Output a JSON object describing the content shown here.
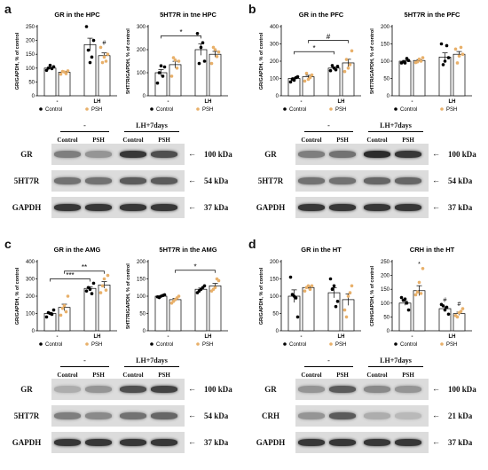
{
  "panels": [
    {
      "letter": "a"
    },
    {
      "letter": "b"
    },
    {
      "letter": "c"
    },
    {
      "letter": "d"
    }
  ],
  "legend": {
    "control": "Control",
    "psh": "PSH"
  },
  "colors": {
    "control": "#000000",
    "psh": "#e8b06a",
    "bar": "#ffffff"
  },
  "chart_data": [
    {
      "type": "bar",
      "title": "GR in the HPC",
      "ylabel": "GR/GAPDH, % of control",
      "categories": [
        "-",
        "LH"
      ],
      "ylim": [
        0,
        250
      ],
      "yticks": [
        0,
        50,
        100,
        150,
        200,
        250
      ],
      "series": [
        {
          "name": "Control",
          "values": [
            100,
            185
          ],
          "points": [
            [
              92,
              105,
              100,
              98,
              110
            ],
            [
              250,
              200,
              165,
              140,
              120
            ]
          ]
        },
        {
          "name": "PSH",
          "values": [
            85,
            145
          ],
          "points": [
            [
              78,
              90,
              88,
              80,
              86
            ],
            [
              175,
              150,
              120,
              125,
              140
            ]
          ]
        }
      ],
      "annotations": [
        {
          "text": "#",
          "x": "LH",
          "series": "PSH"
        }
      ],
      "brackets": []
    },
    {
      "type": "bar",
      "title": "5HT7R in tne HPC",
      "ylabel": "5HT7R/GAPDH, % of control",
      "categories": [
        "-",
        "LH"
      ],
      "ylim": [
        0,
        300
      ],
      "yticks": [
        0,
        100,
        200,
        300
      ],
      "series": [
        {
          "name": "Control",
          "values": [
            100,
            200
          ],
          "points": [
            [
              55,
              125,
              100,
              85,
              130
            ],
            [
              270,
              150,
              140,
              230,
              210
            ]
          ]
        },
        {
          "name": "PSH",
          "values": [
            135,
            180
          ],
          "points": [
            [
              85,
              150,
              165,
              120,
              155
            ],
            [
              140,
              190,
              210,
              170,
              200
            ]
          ]
        }
      ],
      "annotations": [],
      "brackets": [
        {
          "text": "*",
          "from": "-/Control",
          "to": "LH/Control",
          "y": 260
        }
      ]
    },
    {
      "type": "bar",
      "title": "GR in the PFC",
      "ylabel": "GR/GAPDH, % of control",
      "categories": [
        "-",
        "LH"
      ],
      "ylim": [
        0,
        400
      ],
      "yticks": [
        0,
        100,
        200,
        300,
        400
      ],
      "series": [
        {
          "name": "Control",
          "values": [
            100,
            160
          ],
          "points": [
            [
              80,
              110,
              95,
              105,
              90
            ],
            [
              145,
              170,
              175,
              150,
              160
            ]
          ]
        },
        {
          "name": "PSH",
          "values": [
            110,
            190
          ],
          "points": [
            [
              85,
              120,
              130,
              105,
              95
            ],
            [
              140,
              260,
              210,
              180,
              160
            ]
          ]
        }
      ],
      "annotations": [],
      "brackets": [
        {
          "text": "*",
          "from": "-/Control",
          "to": "LH/Control",
          "y": 255
        },
        {
          "text": "#",
          "from": "-/PSH",
          "to": "LH/PSH",
          "y": 320
        }
      ]
    },
    {
      "type": "bar",
      "title": "5HT7R in the PFC",
      "ylabel": "5HT7R/GAPDH, % of control",
      "categories": [
        "-",
        "LH"
      ],
      "ylim": [
        0,
        200
      ],
      "yticks": [
        0,
        50,
        100,
        150,
        200
      ],
      "series": [
        {
          "name": "Control",
          "values": [
            100,
            112
          ],
          "points": [
            [
              95,
              102,
              98,
              108,
              95
            ],
            [
              150,
              110,
              90,
              145,
              100
            ]
          ]
        },
        {
          "name": "PSH",
          "values": [
            102,
            120
          ],
          "points": [
            [
              96,
              110,
              98,
              100,
              106
            ],
            [
              135,
              120,
              95,
              140,
              115
            ]
          ]
        }
      ],
      "annotations": [],
      "brackets": []
    },
    {
      "type": "bar",
      "title": "GR in the AMG",
      "ylabel": "GR/GAPDH, % of control",
      "categories": [
        "-",
        "LH"
      ],
      "ylim": [
        0,
        400
      ],
      "yticks": [
        0,
        100,
        200,
        300,
        400
      ],
      "series": [
        {
          "name": "Control",
          "values": [
            100,
            245
          ],
          "points": [
            [
              80,
              120,
              105,
              95,
              100
            ],
            [
              230,
              275,
              250,
              215,
              240
            ]
          ]
        },
        {
          "name": "PSH",
          "values": [
            135,
            265
          ],
          "points": [
            [
              90,
              200,
              130,
              110,
              145
            ],
            [
              220,
              320,
              260,
              235,
              300
            ]
          ]
        }
      ],
      "annotations": [],
      "brackets": [
        {
          "text": "***",
          "from": "-/Control",
          "to": "LH/Control",
          "y": 300
        },
        {
          "text": "**",
          "from": "-/PSH",
          "to": "LH/PSH",
          "y": 345
        }
      ]
    },
    {
      "type": "bar",
      "title": "5HT7R in the AMG",
      "ylabel": "5HT7R/GAPDH, % of control",
      "categories": [
        "-",
        "LH"
      ],
      "ylim": [
        0,
        200
      ],
      "yticks": [
        0,
        50,
        100,
        150,
        200
      ],
      "series": [
        {
          "name": "Control",
          "values": [
            100,
            120
          ],
          "points": [
            [
              98,
              104,
              96,
              102,
              100
            ],
            [
              110,
              130,
              115,
              125,
              120
            ]
          ]
        },
        {
          "name": "PSH",
          "values": [
            90,
            130
          ],
          "points": [
            [
              80,
              100,
              85,
              95,
              90
            ],
            [
              115,
              145,
              120,
              150,
              125
            ]
          ]
        }
      ],
      "annotations": [],
      "brackets": [
        {
          "text": "*",
          "from": "-/PSH",
          "to": "LH/PSH",
          "y": 175
        }
      ]
    },
    {
      "type": "bar",
      "title": "GR in the HT",
      "ylabel": "GR/GAPDH, % of control",
      "categories": [
        "-",
        "LH"
      ],
      "ylim": [
        0,
        200
      ],
      "yticks": [
        0,
        50,
        100,
        150,
        200
      ],
      "series": [
        {
          "name": "Control",
          "values": [
            100,
            110
          ],
          "points": [
            [
              155,
              40,
              105,
              95,
              100
            ],
            [
              150,
              85,
              120,
              70,
              130
            ]
          ]
        },
        {
          "name": "PSH",
          "values": [
            125,
            90
          ],
          "points": [
            [
              115,
              130,
              125,
              120,
              130
            ],
            [
              60,
              130,
              40,
              110,
              100
            ]
          ]
        }
      ],
      "annotations": [],
      "brackets": []
    },
    {
      "type": "bar",
      "title": "CRH in the HT",
      "ylabel": "CRH/GAPDH, % of control",
      "categories": [
        "-",
        "LH"
      ],
      "ylim": [
        0,
        250
      ],
      "yticks": [
        0,
        50,
        100,
        150,
        200,
        250
      ],
      "series": [
        {
          "name": "Control",
          "values": [
            100,
            80
          ],
          "points": [
            [
              120,
              75,
              110,
              100,
              115
            ],
            [
              95,
              60,
              90,
              85,
              75
            ]
          ]
        },
        {
          "name": "PSH",
          "values": [
            145,
            62
          ],
          "points": [
            [
              130,
              225,
              140,
              135,
              175
            ],
            [
              55,
              80,
              50,
              70,
              65
            ]
          ]
        }
      ],
      "annotations": [
        {
          "text": "*",
          "x": "-",
          "series": "PSH"
        },
        {
          "text": "#",
          "x": "LH",
          "series": "Control"
        },
        {
          "text": "#",
          "x": "LH",
          "series": "PSH"
        }
      ],
      "brackets": []
    }
  ],
  "blots": [
    {
      "groups": [
        "-",
        "LH+7days"
      ],
      "lanes": [
        "Control",
        "PSH",
        "Control",
        "PSH"
      ],
      "rows": [
        {
          "name": "GR",
          "kda": "100 kDa",
          "intensity": [
            0.55,
            0.45,
            0.85,
            0.75
          ]
        },
        {
          "name": "5HT7R",
          "kda": "54 kDa",
          "intensity": [
            0.6,
            0.6,
            0.7,
            0.7
          ]
        },
        {
          "name": "GAPDH",
          "kda": "37 kDa",
          "intensity": [
            0.85,
            0.85,
            0.85,
            0.85
          ]
        }
      ]
    },
    {
      "groups": [
        "-",
        "LH+7days"
      ],
      "lanes": [
        "Control",
        "PSH",
        "Control",
        "PSH"
      ],
      "rows": [
        {
          "name": "GR",
          "kda": "100 kDa",
          "intensity": [
            0.55,
            0.6,
            0.9,
            0.85
          ]
        },
        {
          "name": "5HT7R",
          "kda": "54 kDa",
          "intensity": [
            0.6,
            0.6,
            0.65,
            0.65
          ]
        },
        {
          "name": "GAPDH",
          "kda": "37 kDa",
          "intensity": [
            0.85,
            0.85,
            0.85,
            0.85
          ]
        }
      ]
    },
    {
      "groups": [
        "-",
        "LH+7days"
      ],
      "lanes": [
        "Control",
        "PSH",
        "Control",
        "PSH"
      ],
      "rows": [
        {
          "name": "GR",
          "kda": "100 kDa",
          "intensity": [
            0.35,
            0.45,
            0.75,
            0.8
          ]
        },
        {
          "name": "5HT7R",
          "kda": "54 kDa",
          "intensity": [
            0.55,
            0.5,
            0.6,
            0.65
          ]
        },
        {
          "name": "GAPDH",
          "kda": "37 kDa",
          "intensity": [
            0.85,
            0.85,
            0.85,
            0.85
          ]
        }
      ]
    },
    {
      "groups": [
        "-",
        "LH+7days"
      ],
      "lanes": [
        "Control",
        "PSH",
        "Control",
        "PSH"
      ],
      "rows": [
        {
          "name": "GR",
          "kda": "100 kDa",
          "intensity": [
            0.45,
            0.7,
            0.5,
            0.45
          ]
        },
        {
          "name": "CRH",
          "kda": "21 kDa",
          "intensity": [
            0.45,
            0.7,
            0.35,
            0.3
          ]
        },
        {
          "name": "GAPDH",
          "kda": "37 kDa",
          "intensity": [
            0.85,
            0.85,
            0.85,
            0.85
          ]
        }
      ]
    }
  ]
}
